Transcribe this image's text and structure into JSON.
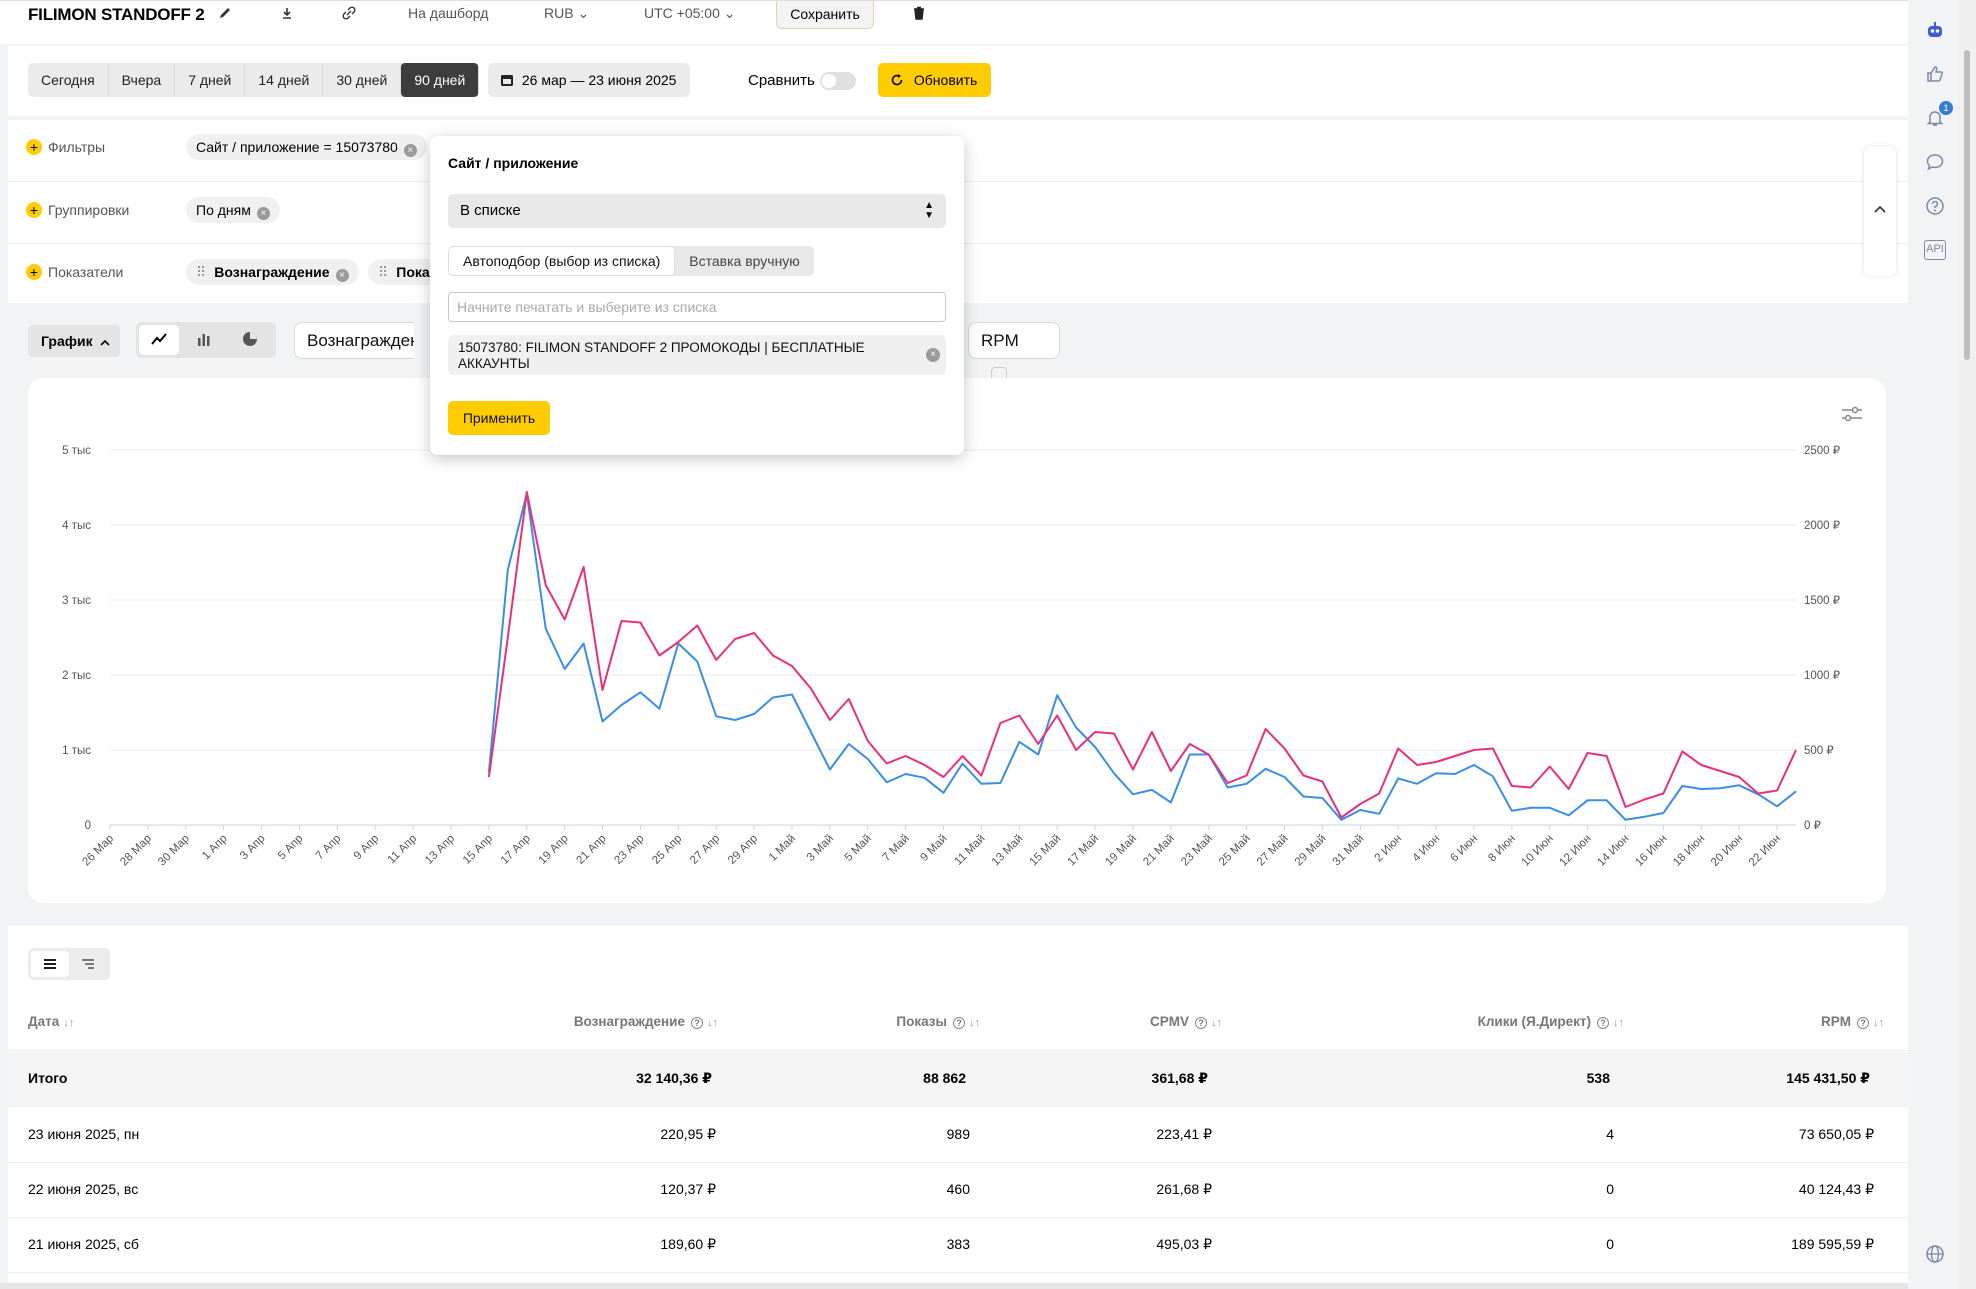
{
  "header": {
    "title": "FILIMON STANDOFF 2",
    "dashboard_label": "На дашборд",
    "currency": "RUB",
    "timezone": "UTC +05:00",
    "save_label": "Сохранить"
  },
  "period": {
    "buttons": [
      "Сегодня",
      "Вчера",
      "7 дней",
      "14 дней",
      "30 дней",
      "90 дней"
    ],
    "active": "90 дней",
    "date_range": "26 мар — 23 июня 2025",
    "compare_label": "Сравнить",
    "refresh_label": "Обновить"
  },
  "filters": {
    "filters_label": "Фильтры",
    "filter_chip": "Сайт / приложение = 15073780",
    "groupings_label": "Группировки",
    "grouping_chip": "По дням",
    "metrics_label": "Показатели",
    "metric_chip_1": "Вознаграждение",
    "metric_chip_2": "Пока"
  },
  "chart_toolbar": {
    "graph_label": "График",
    "metric_select_1": "Вознагражден",
    "metric_select_2": "RPM"
  },
  "popup": {
    "title": "Сайт / приложение",
    "condition": "В списке",
    "tab_auto": "Автоподбор (выбор из списка)",
    "tab_manual": "Вставка вручную",
    "input_placeholder": "Начните печатать и выберите из списка",
    "selected_item": "15073780: FILIMON STANDOFF 2 ПРОМОКОДЫ | БЕСПЛАТНЫЕ АККАУНТЫ",
    "apply_label": "Применить"
  },
  "chart_data": {
    "type": "line",
    "x": [
      "26 Мар",
      "27 Мар",
      "28 Мар",
      "29 Мар",
      "30 Мар",
      "31 Мар",
      "1 Апр",
      "2 Апр",
      "3 Апр",
      "4 Апр",
      "5 Апр",
      "6 Апр",
      "7 Апр",
      "8 Апр",
      "9 Апр",
      "10 Апр",
      "11 Апр",
      "12 Апр",
      "13 Апр",
      "14 Апр",
      "15 Апр",
      "16 Апр",
      "17 Апр",
      "18 Апр",
      "19 Апр",
      "20 Апр",
      "21 Апр",
      "22 Апр",
      "23 Апр",
      "24 Апр",
      "25 Апр",
      "26 Апр",
      "27 Апр",
      "28 Апр",
      "29 Апр",
      "30 Апр",
      "1 Май",
      "2 Май",
      "3 Май",
      "4 Май",
      "5 Май",
      "6 Май",
      "7 Май",
      "8 Май",
      "9 Май",
      "10 Май",
      "11 Май",
      "12 Май",
      "13 Май",
      "14 Май",
      "15 Май",
      "16 Май",
      "17 Май",
      "18 Май",
      "19 Май",
      "20 Май",
      "21 Май",
      "22 Май",
      "23 Май",
      "24 Май",
      "25 Май",
      "26 Май",
      "27 Май",
      "28 Май",
      "29 Май",
      "30 Май",
      "31 Май",
      "1 Июн",
      "2 Июн",
      "3 Июн",
      "4 Июн",
      "5 Июн",
      "6 Июн",
      "7 Июн",
      "8 Июн",
      "9 Июн",
      "10 Июн",
      "11 Июн",
      "12 Июн",
      "13 Июн",
      "14 Июн",
      "15 Июн",
      "16 Июн",
      "17 Июн",
      "18 Июн",
      "19 Июн",
      "20 Июн",
      "21 Июн",
      "22 Июн",
      "23 Июн"
    ],
    "x_tick_labels": [
      "26 Мар",
      "28 Мар",
      "30 Мар",
      "1 Апр",
      "3 Апр",
      "5 Апр",
      "7 Апр",
      "9 Апр",
      "11 Апр",
      "13 Апр",
      "15 Апр",
      "17 Апр",
      "19 Апр",
      "21 Апр",
      "23 Апр",
      "25 Апр",
      "27 Апр",
      "29 Апр",
      "1 Май",
      "3 Май",
      "5 Май",
      "7 Май",
      "9 Май",
      "11 Май",
      "13 Май",
      "15 Май",
      "17 Май",
      "19 Май",
      "21 Май",
      "23 Май",
      "25 Май",
      "27 Май",
      "29 Май",
      "31 Май",
      "2 Июн",
      "4 Июн",
      "6 Июн",
      "8 Июн",
      "10 Июн",
      "12 Июн",
      "14 Июн",
      "16 Июн",
      "18 Июн",
      "20 Июн",
      "22 Июн"
    ],
    "y_left_ticks": [
      "0",
      "1 тыс",
      "2 тыс",
      "3 тыс",
      "4 тыс",
      "5 тыс"
    ],
    "y_left_range": [
      0,
      5000
    ],
    "y_right_ticks": [
      "0 ₽",
      "500 ₽",
      "1000 ₽",
      "1500 ₽",
      "2000 ₽",
      "2500 ₽"
    ],
    "y_right_range": [
      0,
      2500
    ],
    "grid": true,
    "series": [
      {
        "axis": "left",
        "color": "#3a8ee6",
        "values": [
          null,
          null,
          null,
          null,
          null,
          null,
          null,
          null,
          null,
          null,
          null,
          null,
          null,
          null,
          null,
          null,
          null,
          null,
          null,
          null,
          700,
          3400,
          4420,
          2620,
          2080,
          2420,
          1380,
          1600,
          1770,
          1550,
          2420,
          2180,
          1450,
          1400,
          1480,
          1700,
          1740,
          1240,
          740,
          1080,
          880,
          570,
          680,
          630,
          430,
          820,
          550,
          560,
          1110,
          940,
          1730,
          1300,
          1040,
          690,
          410,
          470,
          300,
          940,
          940,
          500,
          550,
          750,
          640,
          380,
          360,
          70,
          200,
          150,
          620,
          550,
          690,
          680,
          800,
          650,
          190,
          230,
          230,
          130,
          330,
          330,
          70,
          110,
          160,
          520,
          480,
          490,
          530,
          410,
          250,
          450
        ]
      },
      {
        "axis": "right",
        "color": "#e8307a",
        "values": [
          null,
          null,
          null,
          null,
          null,
          null,
          null,
          null,
          null,
          null,
          null,
          null,
          null,
          null,
          null,
          null,
          null,
          null,
          null,
          null,
          320,
          1250,
          2220,
          1600,
          1370,
          1720,
          900,
          1360,
          1350,
          1130,
          1220,
          1330,
          1100,
          1240,
          1280,
          1130,
          1060,
          910,
          700,
          840,
          560,
          410,
          460,
          400,
          320,
          460,
          330,
          680,
          730,
          540,
          730,
          500,
          620,
          610,
          370,
          620,
          360,
          540,
          470,
          280,
          330,
          640,
          510,
          330,
          290,
          50,
          140,
          210,
          510,
          400,
          420,
          460,
          500,
          510,
          260,
          250,
          390,
          240,
          480,
          460,
          120,
          170,
          210,
          490,
          400,
          360,
          320,
          210,
          230,
          500
        ]
      }
    ]
  },
  "table": {
    "headers": {
      "date": "Дата",
      "reward": "Вознаграждение",
      "impressions": "Показы",
      "cpmv": "CPMV",
      "clicks": "Клики (Я.Директ)",
      "rpm": "RPM"
    },
    "total": {
      "label": "Итого",
      "reward": "32 140,36 ₽",
      "impressions": "88 862",
      "cpmv": "361,68 ₽",
      "clicks": "538",
      "rpm": "145 431,50 ₽"
    },
    "rows": [
      {
        "date": "23 июня 2025, пн",
        "reward": "220,95 ₽",
        "impressions": "989",
        "cpmv": "223,41 ₽",
        "clicks": "4",
        "rpm": "73 650,05 ₽"
      },
      {
        "date": "22 июня 2025, вс",
        "reward": "120,37 ₽",
        "impressions": "460",
        "cpmv": "261,68 ₽",
        "clicks": "0",
        "rpm": "40 124,43 ₽"
      },
      {
        "date": "21 июня 2025, сб",
        "reward": "189,60 ₽",
        "impressions": "383",
        "cpmv": "495,03 ₽",
        "clicks": "0",
        "rpm": "189 595,59 ₽"
      }
    ]
  },
  "rail": {
    "notification_count": "1",
    "api_label": "API"
  }
}
